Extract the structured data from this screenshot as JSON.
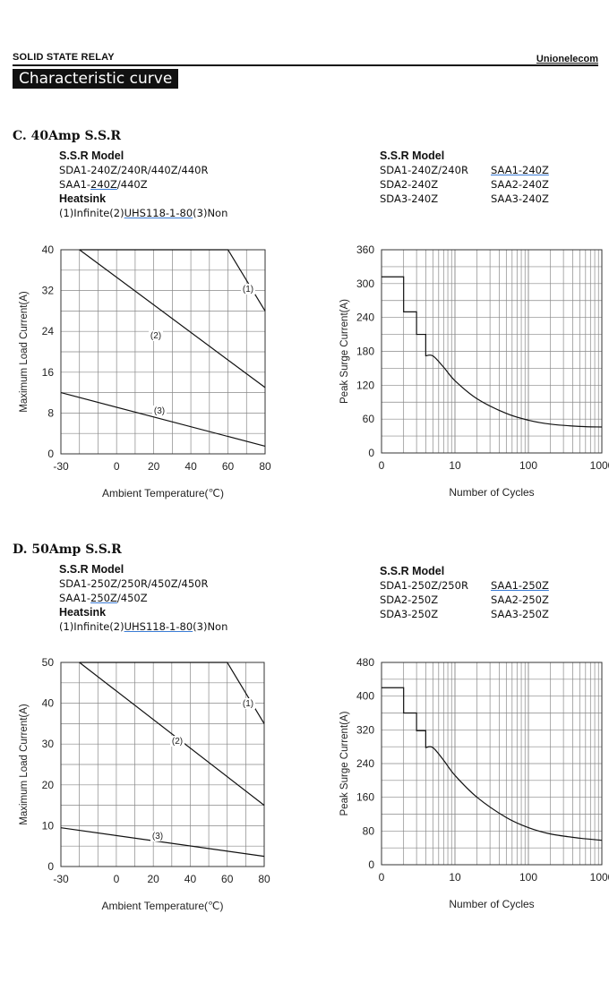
{
  "header": {
    "left": "SOLID STATE RELAY",
    "right": "Unionelecom",
    "banner": "Characteristic curve"
  },
  "sections": [
    {
      "title": "C. 40Amp S.S.R",
      "left": {
        "model_heading": "S.S.R Model",
        "line1": "SDA1-240Z/240R/440Z/440R",
        "line2_prefix": "SAA1-",
        "line2_u": "240Z",
        "line2_suffix": "/440Z",
        "heatsink_heading": "Heatsink",
        "heatsink_prefix": "(1)Infinite(2)",
        "heatsink_u": "UHS118-1-80",
        "heatsink_suffix": "(3)Non"
      },
      "right": {
        "model_heading": "S.S.R Model",
        "col1": [
          "SDA1-240Z/240R",
          "SDA2-240Z",
          "SDA3-240Z"
        ],
        "col2": [
          "SAA1-240Z",
          "SAA2-240Z",
          "SAA3-240Z"
        ]
      }
    },
    {
      "title": "D. 50Amp S.S.R",
      "left": {
        "model_heading": "S.S.R Model",
        "line1": "SDA1-250Z/250R/450Z/450R",
        "line2_prefix": "SAA1-",
        "line2_u": "250Z",
        "line2_suffix": "/450Z",
        "heatsink_heading": "Heatsink",
        "heatsink_prefix": "(1)Infinite(2)",
        "heatsink_u": "UHS118-1-80",
        "heatsink_suffix": "(3)Non"
      },
      "right": {
        "model_heading": "S.S.R Model",
        "col1": [
          "SDA1-250Z/250R",
          "SDA2-250Z",
          "SDA3-250Z"
        ],
        "col2": [
          "SAA1-250Z",
          "SAA2-250Z",
          "SAA3-250Z"
        ]
      }
    }
  ],
  "chart_data": [
    {
      "type": "line",
      "xlabel": "Ambient Temperature(℃)",
      "ylabel": "Maximum Load Current(A)",
      "xlim": [
        -30,
        80
      ],
      "ylim": [
        0,
        40
      ],
      "xticks": [
        -30,
        0,
        20,
        40,
        60,
        80
      ],
      "yticks": [
        0,
        8,
        16,
        24,
        32,
        40
      ],
      "grid": true,
      "series": [
        {
          "name": "(1)",
          "x": [
            -20,
            60,
            80
          ],
          "y": [
            40,
            40,
            28
          ]
        },
        {
          "name": "(2)",
          "x": [
            -20,
            80
          ],
          "y": [
            40,
            13
          ]
        },
        {
          "name": "(3)",
          "x": [
            -30,
            80
          ],
          "y": [
            12,
            1.5
          ]
        }
      ]
    },
    {
      "type": "line",
      "xlabel": "Number of Cycles",
      "ylabel": "Peak Surge Current(A)",
      "xscale": "log",
      "xlim": [
        1,
        1000
      ],
      "ylim": [
        0,
        360
      ],
      "xticks": [
        1,
        10,
        100,
        1000
      ],
      "xticklabels": [
        "0",
        "10",
        "100",
        "1000"
      ],
      "yticks": [
        0,
        60,
        120,
        180,
        240,
        300,
        360
      ],
      "grid": true,
      "series": [
        {
          "x": [
            1,
            2,
            2,
            3,
            3,
            4,
            4,
            5,
            7,
            10,
            20,
            50,
            100,
            200,
            500,
            1000
          ],
          "y": [
            312,
            312,
            250,
            250,
            210,
            210,
            172,
            172,
            152,
            128,
            96,
            70,
            58,
            51,
            47,
            46
          ]
        }
      ]
    },
    {
      "type": "line",
      "xlabel": "Ambient Temperature(℃)",
      "ylabel": "Maximum Load Current(A)",
      "xlim": [
        -30,
        80
      ],
      "ylim": [
        0,
        50
      ],
      "xticks": [
        -30,
        0,
        20,
        40,
        60,
        80
      ],
      "yticks": [
        0,
        10,
        20,
        30,
        40,
        50
      ],
      "grid": true,
      "series": [
        {
          "name": "(1)",
          "x": [
            -20,
            60,
            80
          ],
          "y": [
            50,
            50,
            35
          ]
        },
        {
          "name": "(2)",
          "x": [
            -20,
            80
          ],
          "y": [
            50,
            15
          ]
        },
        {
          "name": "(3)",
          "x": [
            -30,
            80
          ],
          "y": [
            9.5,
            2.5
          ]
        }
      ]
    },
    {
      "type": "line",
      "xlabel": "Number of Cycles",
      "ylabel": "Peak Surge Current(A)",
      "xscale": "log",
      "xlim": [
        1,
        1000
      ],
      "ylim": [
        0,
        480
      ],
      "xticks": [
        1,
        10,
        100,
        1000
      ],
      "xticklabels": [
        "0",
        "10",
        "100",
        "1000"
      ],
      "yticks": [
        0,
        80,
        160,
        240,
        320,
        400,
        480
      ],
      "grid": true,
      "series": [
        {
          "x": [
            1,
            2,
            2,
            3,
            3,
            4,
            4,
            5,
            7,
            10,
            20,
            50,
            100,
            200,
            500,
            1000
          ],
          "y": [
            420,
            420,
            360,
            360,
            318,
            318,
            278,
            278,
            248,
            212,
            160,
            112,
            88,
            73,
            63,
            58
          ]
        }
      ]
    }
  ]
}
